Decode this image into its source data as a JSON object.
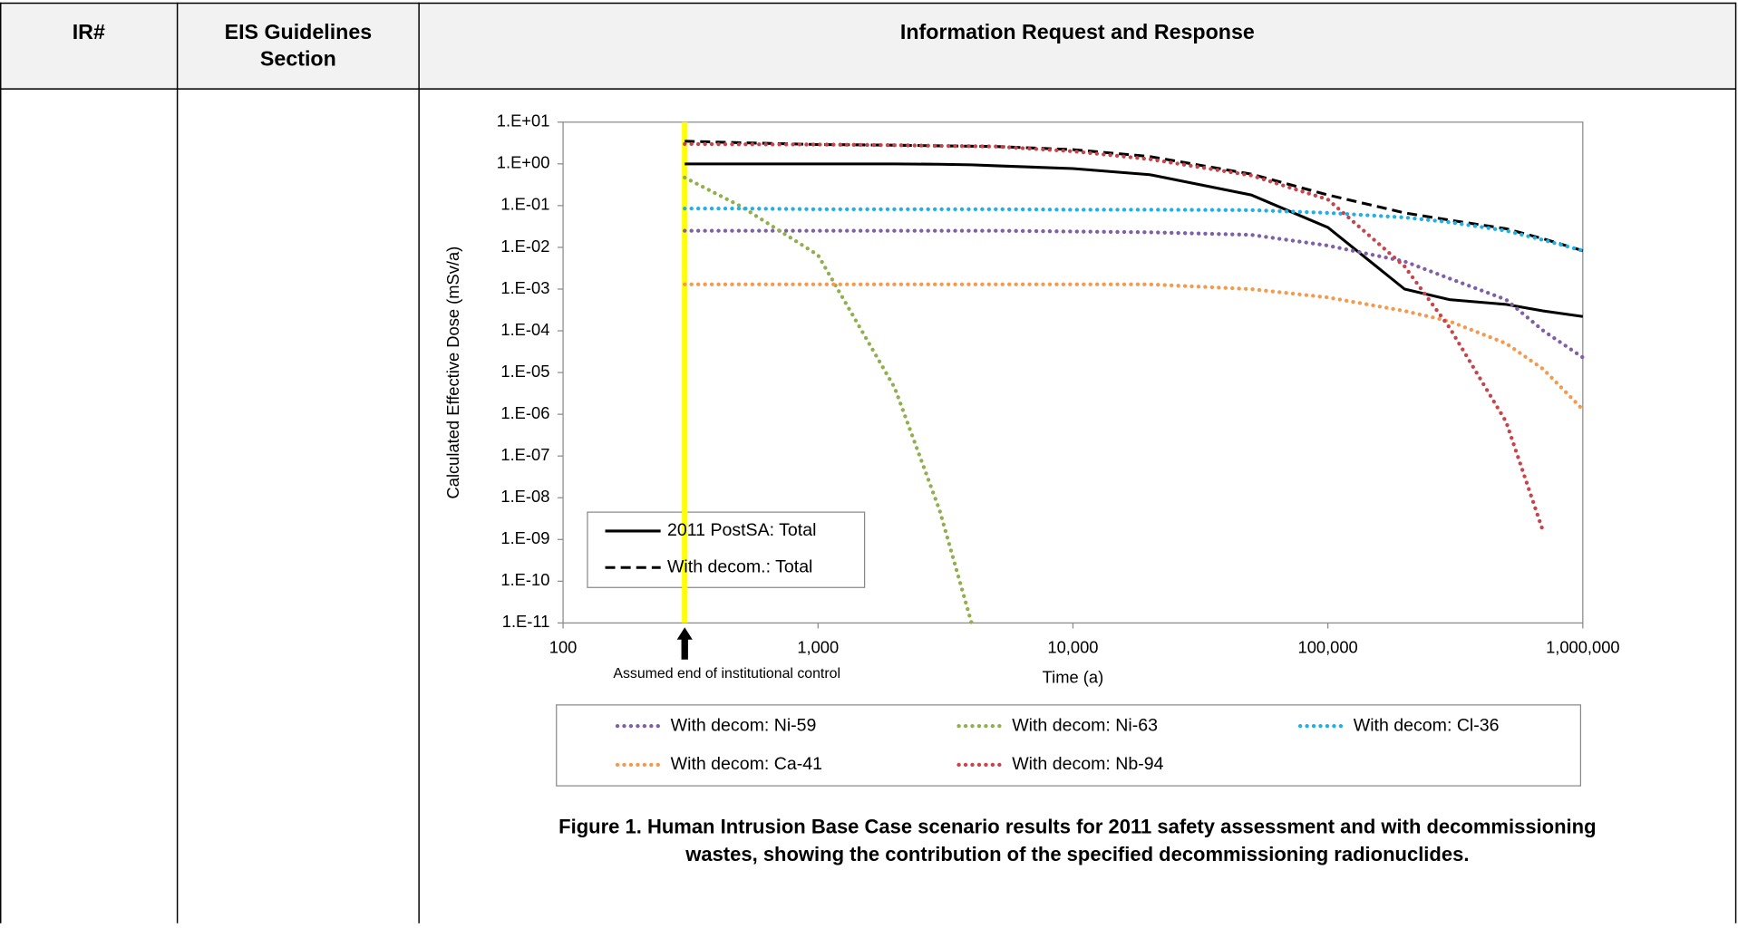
{
  "table": {
    "header": [
      [
        "IR#"
      ],
      [
        "EIS Guidelines",
        "Section"
      ],
      [
        "Information Request and Response"
      ]
    ]
  },
  "chart_data": {
    "type": "line",
    "x_label": "Time (a)",
    "y_label": "Calculated Effective Dose (mSv/a)",
    "x": [
      300,
      500,
      1000,
      2000,
      3000,
      4000,
      5000,
      10000,
      20000,
      50000,
      100000,
      200000,
      300000,
      500000,
      700000,
      1000000
    ],
    "xlim": [
      100,
      1000000
    ],
    "x_log": true,
    "xticks": [
      100,
      {
        "value": 1000,
        "label": "1,000"
      },
      {
        "value": 10000,
        "label": "10,000"
      },
      {
        "value": 100000,
        "label": "100,000"
      },
      {
        "value": 1000000,
        "label": "1,000,000"
      }
    ],
    "ylim": [
      1e-11,
      10
    ],
    "y_log": true,
    "yticks": [
      {
        "value": 10,
        "label": "1.E+01"
      },
      {
        "value": 1,
        "label": "1.E+00"
      },
      {
        "value": 0.1,
        "label": "1.E-01"
      },
      {
        "value": 0.01,
        "label": "1.E-02"
      },
      {
        "value": 0.001,
        "label": "1.E-03"
      },
      {
        "value": 0.0001,
        "label": "1.E-04"
      },
      {
        "value": 1e-05,
        "label": "1.E-05"
      },
      {
        "value": 1e-06,
        "label": "1.E-06"
      },
      {
        "value": 1e-07,
        "label": "1.E-07"
      },
      {
        "value": 1e-08,
        "label": "1.E-08"
      },
      {
        "value": 1e-09,
        "label": "1.E-09"
      },
      {
        "value": 1e-10,
        "label": "1.E-10"
      },
      {
        "value": 1e-11,
        "label": "1.E-11"
      }
    ],
    "series": [
      {
        "name": "2011 PostSA: Total",
        "color": "#000000",
        "dash": "solid",
        "legend": "inner",
        "values": [
          1.0,
          1.0,
          1.0,
          1.0,
          0.98,
          0.95,
          0.9,
          0.77,
          0.55,
          0.18,
          0.03,
          0.001,
          0.00056,
          0.00043,
          0.0003,
          0.00022
        ]
      },
      {
        "name": "With decom.: Total",
        "color": "#000000",
        "dash": "dashed",
        "legend": "inner",
        "values": [
          3.5,
          3.2,
          2.9,
          2.8,
          2.7,
          2.65,
          2.6,
          2.2,
          1.5,
          0.57,
          0.18,
          0.067,
          0.045,
          0.028,
          0.016,
          0.0083
        ]
      },
      {
        "name": "With decom: Ni-59",
        "color": "#7f5fa8",
        "dash": "dotted",
        "legend": "outer",
        "values": [
          0.025,
          0.025,
          0.025,
          0.025,
          0.025,
          0.025,
          0.025,
          0.024,
          0.023,
          0.02,
          0.011,
          0.0046,
          0.0018,
          0.00056,
          0.0001,
          2.3e-05
        ]
      },
      {
        "name": "With decom: Ni-63",
        "color": "#8fb04c",
        "dash": "dotted",
        "legend": "outer",
        "values": [
          0.47,
          0.095,
          0.0065,
          4.3e-06,
          5e-09,
          1e-11,
          null,
          null,
          null,
          null,
          null,
          null,
          null,
          null,
          null,
          null
        ]
      },
      {
        "name": "With decom: Cl-36",
        "color": "#1fb0e8",
        "dash": "dotted",
        "legend": "outer",
        "values": [
          0.085,
          0.085,
          0.082,
          0.082,
          0.082,
          0.082,
          0.082,
          0.08,
          0.08,
          0.078,
          0.067,
          0.052,
          0.04,
          0.025,
          0.015,
          0.0083
        ]
      },
      {
        "name": "With decom: Ca-41",
        "color": "#f59a4c",
        "dash": "dotted",
        "legend": "outer",
        "values": [
          0.0013,
          0.0013,
          0.0013,
          0.0013,
          0.0013,
          0.0013,
          0.0013,
          0.0013,
          0.0013,
          0.001,
          0.00063,
          0.0003,
          0.00017,
          5e-05,
          1.2e-05,
          1.3e-06
        ]
      },
      {
        "name": "With decom: Nb-94",
        "color": "#c8434a",
        "dash": "dotted",
        "legend": "outer",
        "values": [
          3.0,
          2.95,
          2.9,
          2.8,
          2.7,
          2.65,
          2.6,
          2.0,
          1.3,
          0.53,
          0.14,
          0.0035,
          0.00012,
          6.6e-07,
          1.5e-09,
          null
        ]
      }
    ],
    "marker": {
      "x": 300,
      "color": "#ffff00",
      "label": "Assumed end of institutional control"
    }
  },
  "caption": [
    "Figure 1.  Human Intrusion Base Case scenario results for 2011 safety assessment and with decommissioning",
    "wastes, showing the contribution of the specified decommissioning radionuclides."
  ]
}
